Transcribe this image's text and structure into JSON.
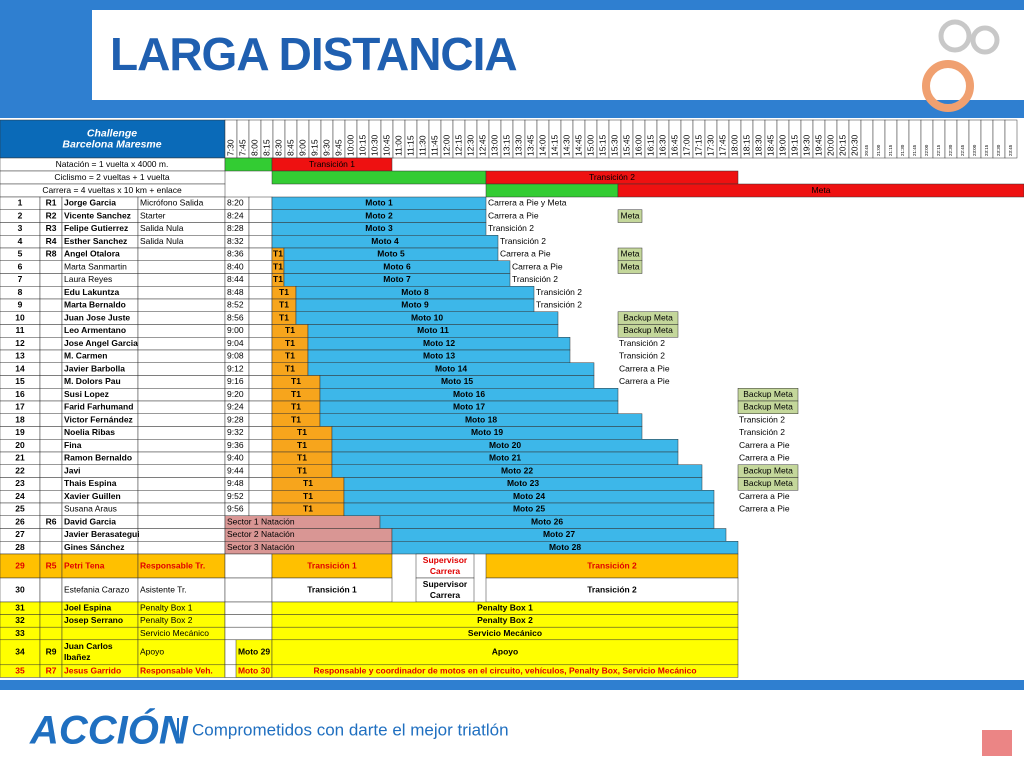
{
  "header": {
    "title": "LARGA DISTANCIA",
    "event": [
      "Challenge",
      "Barcelona Maresme"
    ],
    "times": [
      "7:30",
      "7:45",
      "8:00",
      "8:15",
      "8:30",
      "8:45",
      "9:00",
      "9:15",
      "9:30",
      "9:45",
      "10:00",
      "10:15",
      "10:30",
      "10:45",
      "11:00",
      "11:15",
      "11:30",
      "11:45",
      "12:00",
      "12:15",
      "12:30",
      "12:45",
      "13:00",
      "13:15",
      "13:30",
      "13:45",
      "14:00",
      "14:15",
      "14:30",
      "14:45",
      "15:00",
      "15:15",
      "15:30",
      "15:45",
      "16:00",
      "16:15",
      "16:30",
      "16:45",
      "17:00",
      "17:15",
      "17:30",
      "17:45",
      "18:00",
      "18:15",
      "18:30",
      "18:45",
      "19:00",
      "19:15",
      "19:30",
      "19:45",
      "20:00",
      "20:15",
      "20:30",
      "20:45",
      "21:00",
      "21:15",
      "21:30",
      "21:45",
      "22:00",
      "22:15",
      "22:30",
      "22:45",
      "23:00",
      "23:15",
      "23:30",
      "23:45"
    ]
  },
  "legend": [
    {
      "label": "Natación = 1 vuelta x 4000 m.",
      "cells": [
        "Transición 1"
      ]
    },
    {
      "label": "Ciclismo = 2 vueltas + 1 vuelta",
      "cells": [
        "Transición 2"
      ]
    },
    {
      "label": "Carrera = 4 vueltas x 10 km + enlace",
      "cells": [
        "Meta"
      ]
    }
  ],
  "rows": [
    {
      "num": "1",
      "code": "R1",
      "name": "Jorge Garcia",
      "role": "Micrófono Salida",
      "time": "8:20",
      "cells": [
        "Moto 1",
        "Carrera a Pie y Meta"
      ]
    },
    {
      "num": "2",
      "code": "R2",
      "name": "Vicente Sanchez",
      "role": "Starter",
      "time": "8:24",
      "cells": [
        "Moto 2",
        "Carrera a Pie",
        "Meta"
      ]
    },
    {
      "num": "3",
      "code": "R3",
      "name": "Felipe Gutierrez",
      "role": "Salida Nula",
      "time": "8:28",
      "cells": [
        "Moto 3",
        "Transición 2"
      ]
    },
    {
      "num": "4",
      "code": "R4",
      "name": "Esther Sanchez",
      "role": "Salida Nula",
      "time": "8:32",
      "cells": [
        "Moto 4",
        "Transición 2"
      ]
    },
    {
      "num": "5",
      "code": "R8",
      "name": "Angel Otalora",
      "time": "8:36",
      "cells": [
        "T1",
        "Moto 5",
        "Carrera a Pie",
        "Meta"
      ]
    },
    {
      "num": "6",
      "name": "Marta Sanmartin",
      "time": "8:40",
      "cells": [
        "T1",
        "Moto 6",
        "Carrera a Pie",
        "Meta"
      ]
    },
    {
      "num": "7",
      "name": "Laura Reyes",
      "time": "8:44",
      "cells": [
        "T1",
        "Moto 7",
        "Transición 2"
      ]
    },
    {
      "num": "8",
      "name": "Edu Lakuntza",
      "time": "8:48",
      "cells": [
        "T1",
        "Moto 8",
        "Transición 2"
      ]
    },
    {
      "num": "9",
      "name": "Marta Bernaldo",
      "time": "8:52",
      "cells": [
        "T1",
        "Moto 9",
        "Transición 2"
      ]
    },
    {
      "num": "10",
      "name": "Juan Jose Juste",
      "time": "8:56",
      "cells": [
        "T1",
        "Moto 10",
        "Backup Meta"
      ]
    },
    {
      "num": "11",
      "name": "Leo Armentano",
      "time": "9:00",
      "cells": [
        "T1",
        "Moto 11",
        "Backup Meta"
      ]
    },
    {
      "num": "12",
      "name": "Jose Angel Garcia",
      "time": "9:04",
      "cells": [
        "T1",
        "Moto 12",
        "Transición 2"
      ]
    },
    {
      "num": "13",
      "name": "M. Carmen",
      "time": "9:08",
      "cells": [
        "T1",
        "Moto 13",
        "Transición 2"
      ]
    },
    {
      "num": "14",
      "name": "Javier Barbolla",
      "time": "9:12",
      "cells": [
        "T1",
        "Moto 14",
        "Carrera a Pie"
      ]
    },
    {
      "num": "15",
      "name": "M. Dolors Pau",
      "time": "9:16",
      "cells": [
        "T1",
        "Moto 15",
        "Carrera a Pie"
      ]
    },
    {
      "num": "16",
      "name": "Susi Lopez",
      "time": "9:20",
      "cells": [
        "T1",
        "Moto 16",
        "Backup Meta"
      ]
    },
    {
      "num": "17",
      "name": "Farid Farhumand",
      "time": "9:24",
      "cells": [
        "T1",
        "Moto 17",
        "Backup Meta"
      ]
    },
    {
      "num": "18",
      "name": "Victor Fernández",
      "time": "9:28",
      "cells": [
        "T1",
        "Moto 18",
        "Transición 2"
      ]
    },
    {
      "num": "19",
      "name": "Noelia Ribas",
      "time": "9:32",
      "cells": [
        "T1",
        "Moto 19",
        "Transición 2"
      ]
    },
    {
      "num": "20",
      "name": "Fina",
      "time": "9:36",
      "cells": [
        "T1",
        "Moto 20",
        "Carrera a Pie"
      ]
    },
    {
      "num": "21",
      "name": "Ramon Bernaldo",
      "time": "9:40",
      "cells": [
        "T1",
        "Moto 21",
        "Carrera a Pie"
      ]
    },
    {
      "num": "22",
      "name": "Javi",
      "time": "9:44",
      "cells": [
        "T1",
        "Moto 22",
        "Backup Meta"
      ]
    },
    {
      "num": "23",
      "name": "Thais Espina",
      "time": "9:48",
      "cells": [
        "T1",
        "Moto 23",
        "Backup Meta"
      ]
    },
    {
      "num": "24",
      "name": "Xavier Guillen",
      "time": "9:52",
      "cells": [
        "T1",
        "Moto 24",
        "Carrera a Pie"
      ]
    },
    {
      "num": "25",
      "name": "Susana Araus",
      "time": "9:56",
      "cells": [
        "T1",
        "Moto 25",
        "Carrera a Pie"
      ]
    },
    {
      "num": "26",
      "code": "R6",
      "name": "David Garcia",
      "cells": [
        "Sector 1 Natación",
        "Moto 26"
      ]
    },
    {
      "num": "27",
      "name": "Javier Berasategui",
      "cells": [
        "Sector 2 Natación",
        "Moto 27"
      ]
    },
    {
      "num": "28",
      "name": "Gines Sánchez",
      "cells": [
        "Sector 3 Natación",
        "Moto 28"
      ]
    },
    {
      "num": "29",
      "code": "R5",
      "name": "Petri Tena",
      "role": "Responsable Tr.",
      "cells": [
        "Transición 1",
        [
          "Supervisor",
          "Carrera"
        ],
        "Transición 2"
      ]
    },
    {
      "num": "30",
      "name": "Estefania Carazo",
      "role": "Asistente Tr.",
      "cells": [
        "Transición 1",
        [
          "Supervisor",
          "Carrera"
        ],
        "Transición 2"
      ]
    },
    {
      "num": "31",
      "name": "Joel Espina",
      "role": "Penalty Box 1",
      "cells": [
        "Penalty Box 1"
      ]
    },
    {
      "num": "32",
      "name": "Josep Serrano",
      "role": "Penalty Box 2",
      "cells": [
        "Penalty Box 2"
      ]
    },
    {
      "num": "33",
      "role": "Servicio Mecánico",
      "cells": [
        "Servicio Mecánico"
      ]
    },
    {
      "num": "34",
      "code": "R9",
      "name": [
        "Juan Carlos",
        "Ibañez"
      ],
      "role": "Apoyo",
      "cells": [
        "Moto 29",
        "Apoyo"
      ]
    },
    {
      "num": "35",
      "code": "R7",
      "name": "Jesus Garrido",
      "role": "Responsable Veh.",
      "cells": [
        "Moto 30",
        "Responsable y coordinador de motos en el circuito, vehículos, Penalty Box, Servicio Mecánico"
      ]
    }
  ],
  "footer": {
    "brand": "ACCIÓN",
    "slogan": "Comprometidos con darte el mejor triatlón"
  }
}
